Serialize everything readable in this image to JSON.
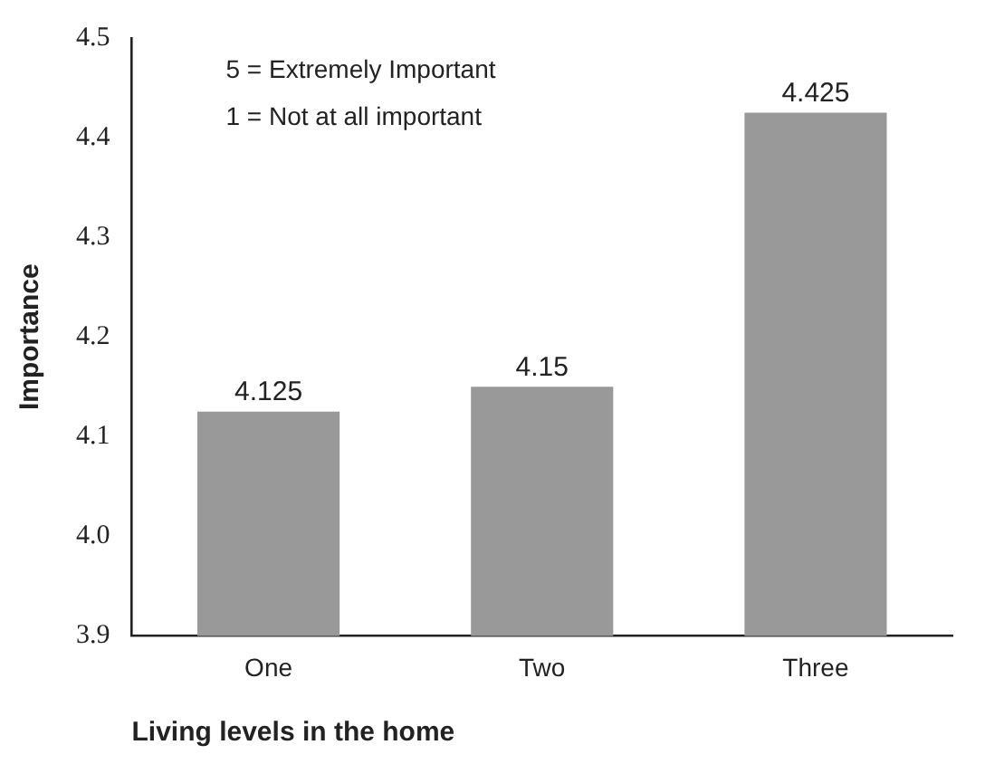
{
  "chart_data": {
    "type": "bar",
    "xlabel": "Living levels in the home",
    "ylabel": "Importance",
    "categories": [
      "One",
      "Two",
      "Three"
    ],
    "values": [
      4.125,
      4.15,
      4.425
    ],
    "color": "#999999",
    "ylim": [
      3.9,
      4.5
    ],
    "yticks": [
      3.9,
      {
        "value": 4,
        "label": "4.0"
      },
      4.1,
      4.2,
      4.3,
      4.4,
      4.5
    ],
    "grid": false,
    "legend": false,
    "data_labels": true,
    "annotations": [
      "5 = Extremely Important",
      "1 = Not at all important"
    ]
  }
}
